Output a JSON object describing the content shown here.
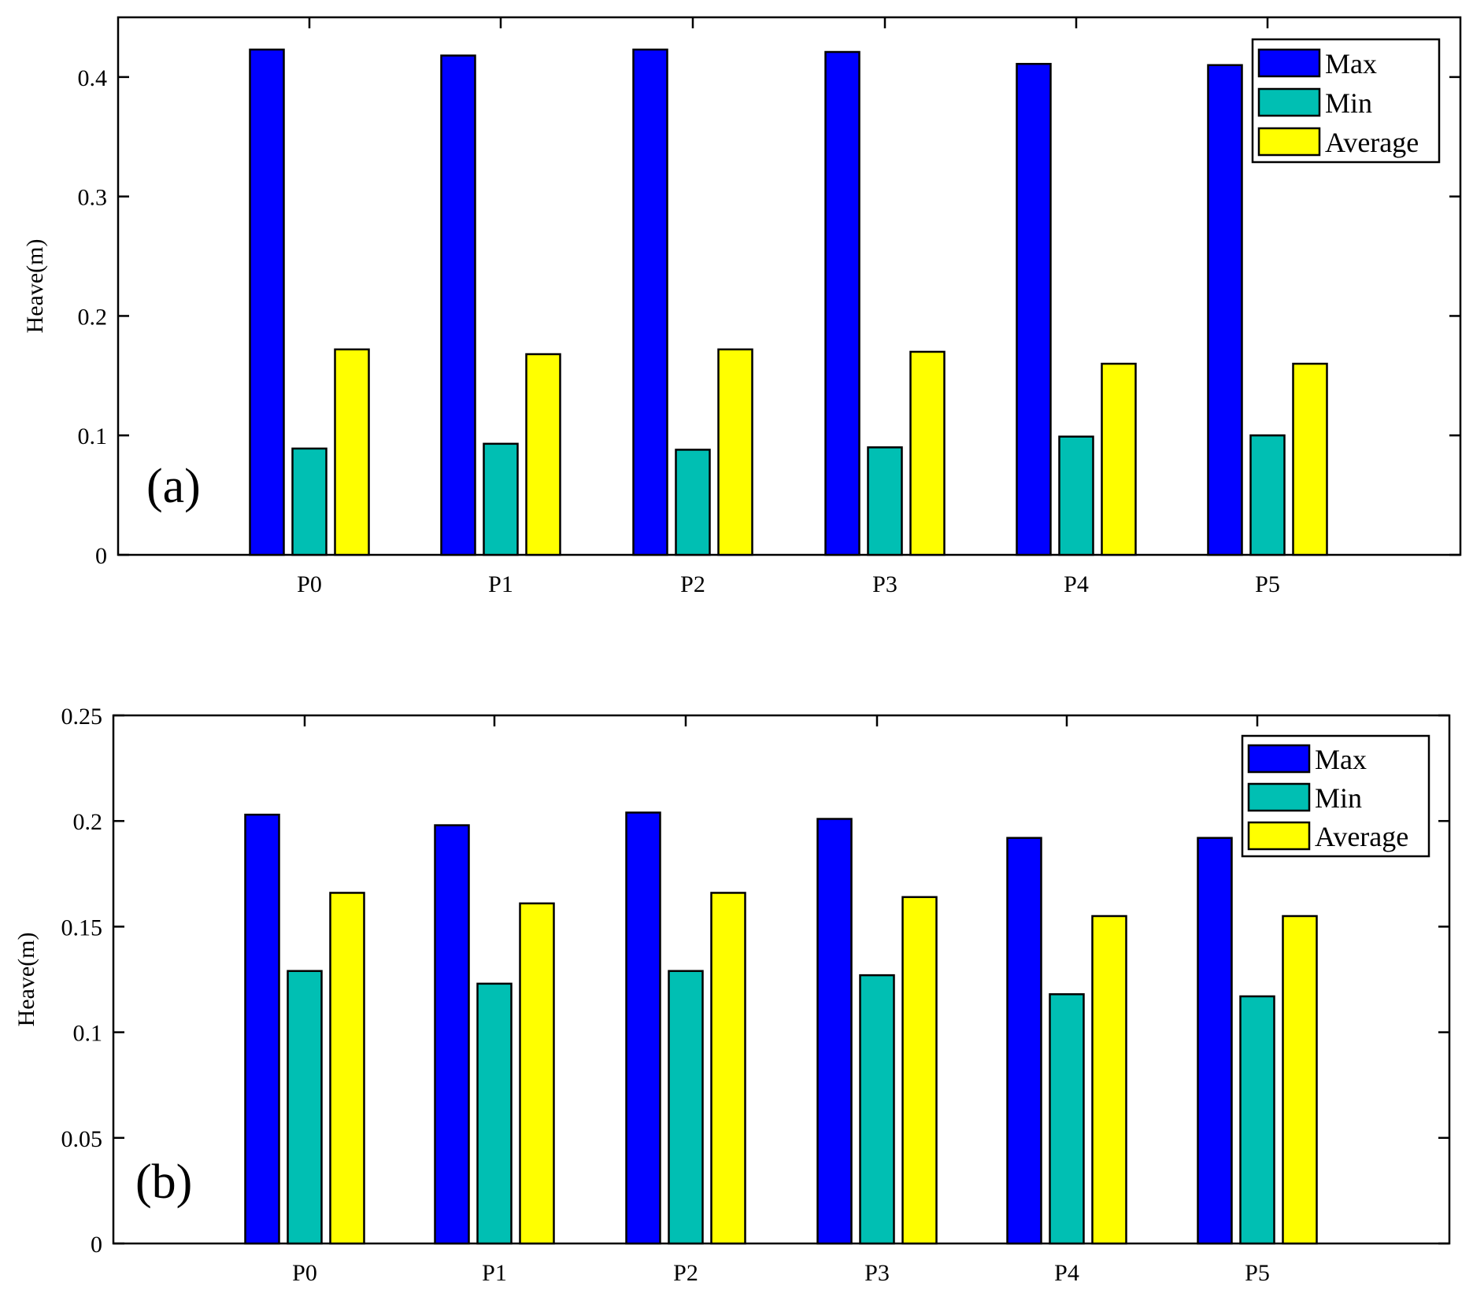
{
  "chart_data": [
    {
      "type": "bar",
      "panel_label": "(a)",
      "categories": [
        "P0",
        "P1",
        "P2",
        "P3",
        "P4",
        "P5"
      ],
      "series": [
        {
          "name": "Max",
          "color": "#0000FF",
          "values": [
            0.423,
            0.418,
            0.423,
            0.421,
            0.411,
            0.41
          ]
        },
        {
          "name": "Min",
          "color": "#00BFB3",
          "values": [
            0.089,
            0.093,
            0.088,
            0.09,
            0.099,
            0.1
          ]
        },
        {
          "name": "Average",
          "color": "#FFFF00",
          "values": [
            0.172,
            0.168,
            0.172,
            0.17,
            0.16,
            0.16
          ]
        }
      ],
      "ylabel": "Heave(m)",
      "xlabel": "",
      "ylim": [
        0,
        0.45
      ],
      "yticks": [
        0,
        0.1,
        0.2,
        0.3,
        0.4
      ],
      "ytick_labels": [
        "0",
        "0.1",
        "0.2",
        "0.3",
        "0.4"
      ],
      "grid": false,
      "legend_position": "top-right"
    },
    {
      "type": "bar",
      "panel_label": "(b)",
      "categories": [
        "P0",
        "P1",
        "P2",
        "P3",
        "P4",
        "P5"
      ],
      "series": [
        {
          "name": "Max",
          "color": "#0000FF",
          "values": [
            0.203,
            0.198,
            0.204,
            0.201,
            0.192,
            0.192
          ]
        },
        {
          "name": "Min",
          "color": "#00BFB3",
          "values": [
            0.129,
            0.123,
            0.129,
            0.127,
            0.118,
            0.117
          ]
        },
        {
          "name": "Average",
          "color": "#FFFF00",
          "values": [
            0.166,
            0.161,
            0.166,
            0.164,
            0.155,
            0.155
          ]
        }
      ],
      "ylabel": "Heave(m)",
      "xlabel": "",
      "ylim": [
        0,
        0.25
      ],
      "yticks": [
        0,
        0.05,
        0.1,
        0.15,
        0.2,
        0.25
      ],
      "ytick_labels": [
        "0",
        "0.05",
        "0.1",
        "0.15",
        "0.2",
        "0.25"
      ],
      "grid": false,
      "legend_position": "top-right"
    }
  ]
}
